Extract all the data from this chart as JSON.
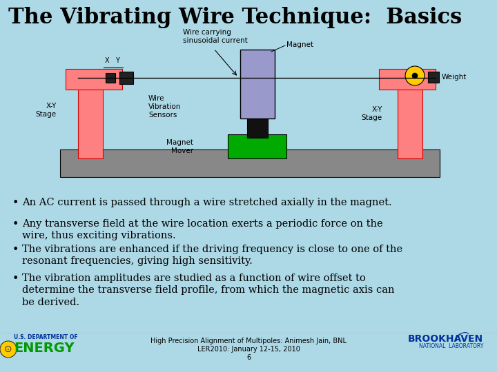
{
  "title": "The Vibrating Wire Technique:  Basics",
  "background_color": "#add8e6",
  "bullet_points": [
    "An AC current is passed through a wire stretched axially in the magnet.",
    "Any transverse field at the wire location exerts a periodic force on the\nwire, thus exciting vibrations.",
    "The vibrations are enhanced if the driving frequency is close to one of the\nresonant frequencies, giving high sensitivity.",
    "The vibration amplitudes are studied as a function of wire offset to\ndetermine the transverse field profile, from which the magnetic axis can\nbe derived."
  ],
  "footer_line1": "High Precision Alignment of Multipoles: Animesh Jain, BNL",
  "footer_line2": "LER2010: January 12-15, 2010",
  "footer_line3": "6",
  "title_fontsize": 22,
  "bullet_fontsize": 10.5,
  "diagram": {
    "rail_color": "#888888",
    "stage_color": "#ff8080",
    "stage_edge": "#cc0000",
    "magnet_color": "#9999cc",
    "magnet_mover_color": "#00aa00",
    "connector_color": "#111111",
    "wire_color": "#000000",
    "sensor_color": "#222222",
    "pulley_color": "#ffcc00",
    "weight_color": "#222222",
    "label_fontsize": 7.5
  }
}
